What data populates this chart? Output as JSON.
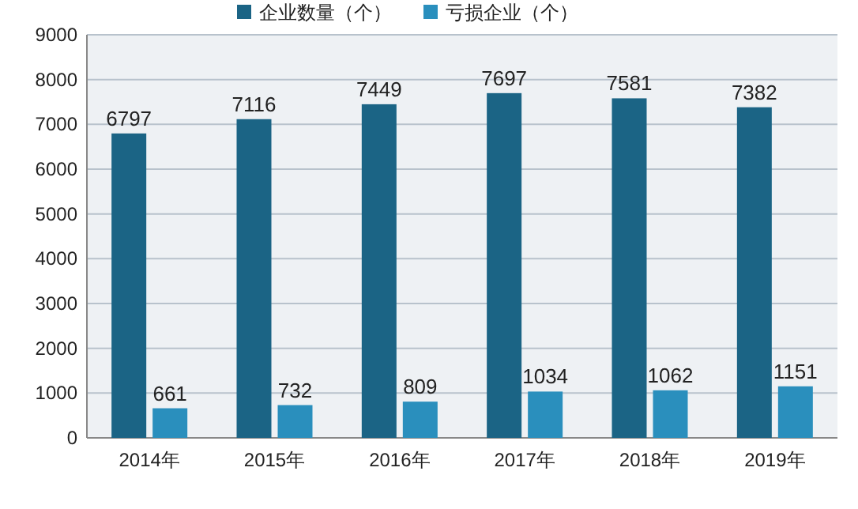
{
  "chart_data": {
    "type": "bar",
    "categories": [
      "2014年",
      "2015年",
      "2016年",
      "2017年",
      "2018年",
      "2019年"
    ],
    "series": [
      {
        "name": "企业数量（个）",
        "color": "#1b6485",
        "values": [
          6797,
          7116,
          7449,
          7697,
          7581,
          7382
        ]
      },
      {
        "name": "亏损企业（个）",
        "color": "#2a8fbd",
        "values": [
          661,
          732,
          809,
          1034,
          1062,
          1151
        ]
      }
    ],
    "ylim": [
      0,
      9000
    ],
    "yticks": [
      0,
      1000,
      2000,
      3000,
      4000,
      5000,
      6000,
      7000,
      8000,
      9000
    ],
    "grid": "y",
    "legend": "top",
    "data_labels": true
  }
}
